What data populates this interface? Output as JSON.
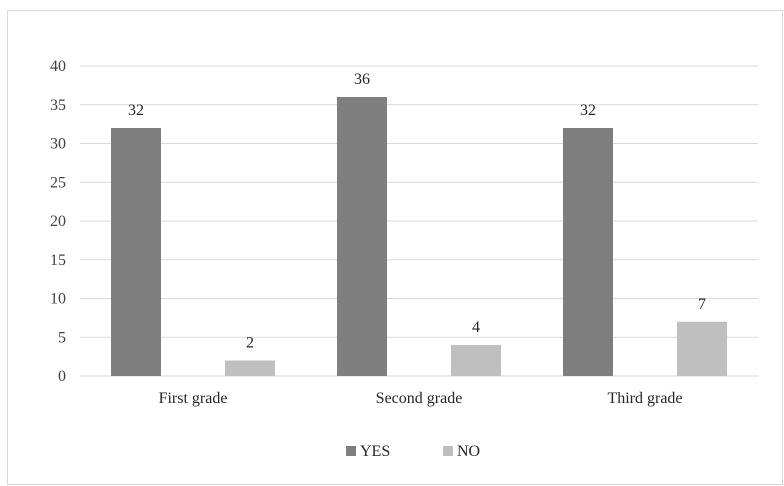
{
  "chart_data": {
    "type": "bar",
    "categories": [
      "First grade",
      "Second grade",
      "Third grade"
    ],
    "series": [
      {
        "name": "YES",
        "values": [
          32,
          36,
          32
        ],
        "color": "#7f7f7f"
      },
      {
        "name": "NO",
        "values": [
          2,
          4,
          7
        ],
        "color": "#bfbfbf"
      }
    ],
    "ylim": [
      0,
      40
    ],
    "yticks": [
      0,
      5,
      10,
      15,
      20,
      25,
      30,
      35,
      40
    ],
    "grid": true,
    "gridColor": "#d9d9d9",
    "legend_position": "bottom",
    "data_labels": true
  }
}
